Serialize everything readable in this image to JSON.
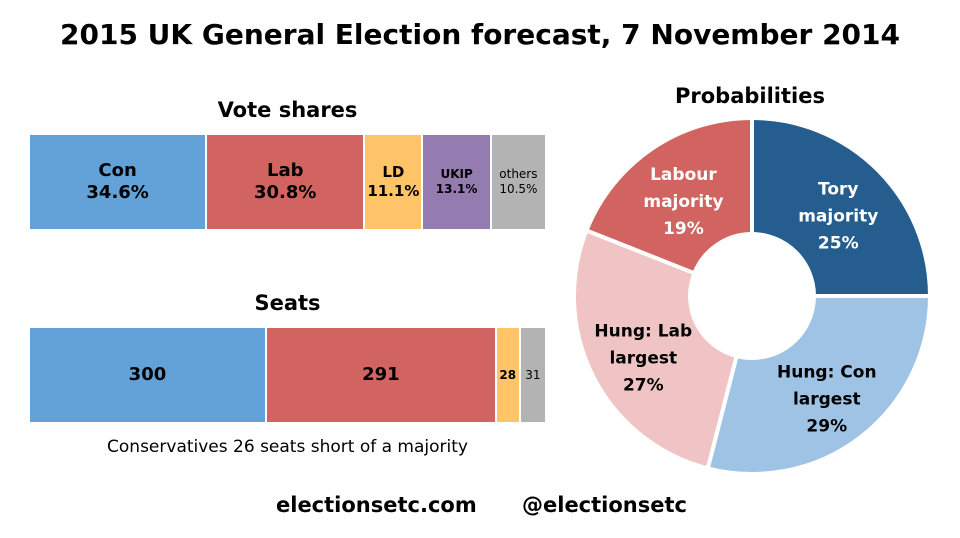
{
  "title": "2015 UK General Election forecast, 7 November 2014",
  "footer": {
    "site": "electionsetc.com",
    "handle": "@electionsetc"
  },
  "chart_data": [
    {
      "type": "bar",
      "title": "Vote shares",
      "stacked": true,
      "unit": "%",
      "series": [
        {
          "name": "Con",
          "value": 34.6,
          "label": "34.6%",
          "color": "#63A2D8"
        },
        {
          "name": "Lab",
          "value": 30.8,
          "label": "30.8%",
          "color": "#D16460"
        },
        {
          "name": "LD",
          "value": 11.1,
          "label": "11.1%",
          "color": "#FEC467"
        },
        {
          "name": "UKIP",
          "value": 13.1,
          "label": "13.1%",
          "color": "#947BB0"
        },
        {
          "name": "others",
          "value": 10.5,
          "label": "10.5%",
          "color": "#B3B3B3"
        }
      ]
    },
    {
      "type": "bar",
      "title": "Seats",
      "stacked": true,
      "note": "Conservatives 26 seats short of a majority",
      "series": [
        {
          "name": "Con",
          "value": 300,
          "label": "300",
          "color": "#63A2D8"
        },
        {
          "name": "Lab",
          "value": 291,
          "label": "291",
          "color": "#D16460"
        },
        {
          "name": "LD",
          "value": 28,
          "label": "28",
          "color": "#FEC467"
        },
        {
          "name": "others",
          "value": 31,
          "label": "31",
          "color": "#B3B3B3"
        }
      ]
    },
    {
      "type": "pie",
      "title": "Probabilities",
      "donut": true,
      "slices": [
        {
          "lines": [
            "Tory",
            "majority",
            "25%"
          ],
          "value": 25,
          "color": "#255E8E",
          "text_color": "#ffffff"
        },
        {
          "lines": [
            "Hung: Con",
            "largest",
            "29%"
          ],
          "value": 29,
          "color": "#9EC3E5",
          "text_color": "#000000"
        },
        {
          "lines": [
            "Hung: Lab",
            "largest",
            "27%"
          ],
          "value": 27,
          "color": "#F0C4C4",
          "text_color": "#000000"
        },
        {
          "lines": [
            "Labour",
            "majority",
            "19%"
          ],
          "value": 19,
          "color": "#D16460",
          "text_color": "#ffffff"
        }
      ]
    }
  ]
}
